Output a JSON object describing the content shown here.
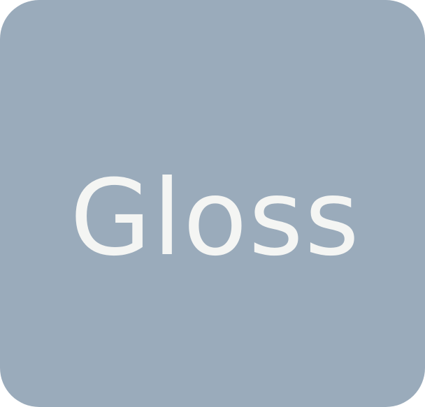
{
  "app_tile": {
    "label": "Gloss",
    "background_color": "#9aabbb",
    "text_color": "#f4f5f3"
  }
}
